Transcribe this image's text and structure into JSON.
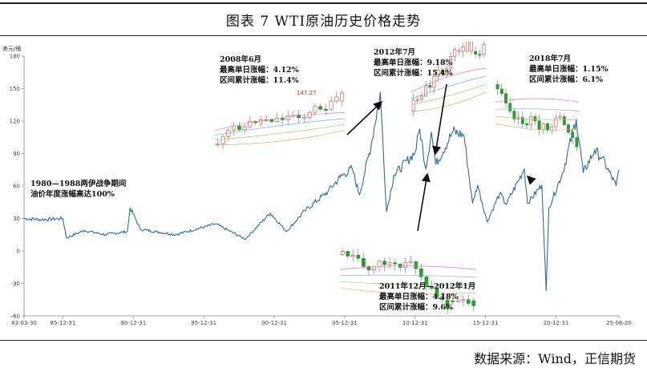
{
  "title": "图表 7 WTI原油历史价格走势",
  "source": "数据来源：Wind，正信期货",
  "chart_data": {
    "type": "line",
    "ylabel": "美元/桶",
    "ylim": [
      -60,
      180
    ],
    "yticks": [
      -60,
      -30,
      0,
      30,
      60,
      90,
      120,
      150,
      180
    ],
    "xticks": [
      "83-03-30",
      "85-12-31",
      "90-12-31",
      "95-12-31",
      "00-12-31",
      "05-12-31",
      "10-12-31",
      "15-12-31",
      "20-12-31",
      "25-06-20"
    ],
    "xrange": [
      "1983-03-30",
      "2025-06-20"
    ],
    "series": [
      {
        "color": "#2e6e96",
        "x": [
          "1983-03-30",
          "1984-06-30",
          "1985-12-31",
          "1986-04-01",
          "1987-06-30",
          "1988-12-31",
          "1990-07-31",
          "1990-10-10",
          "1991-06-30",
          "1993-12-31",
          "1996-10-31",
          "1998-12-10",
          "2000-09-20",
          "2001-11-15",
          "2003-03-01",
          "2004-10-25",
          "2005-08-30",
          "2006-07-14",
          "2007-01-18",
          "2007-11-20",
          "2008-07-11",
          "2008-12-21",
          "2009-06-30",
          "2010-12-31",
          "2011-04-29",
          "2011-10-04",
          "2012-02-24",
          "2012-06-21",
          "2013-09-06",
          "2014-06-20",
          "2015-01-28",
          "2015-06-10",
          "2016-02-11",
          "2016-12-31",
          "2017-06-21",
          "2018-10-03",
          "2018-12-24",
          "2019-12-31",
          "2020-04-20",
          "2020-06-30",
          "2021-06-30",
          "2022-06-08",
          "2022-12-09",
          "2023-09-27",
          "2024-04-05",
          "2025-04-09",
          "2025-06-20"
        ],
        "values": [
          30,
          29,
          30,
          12,
          19,
          15,
          18,
          40,
          20,
          15,
          25,
          11,
          35,
          18,
          37,
          55,
          68,
          76,
          52,
          98,
          147,
          36,
          70,
          91,
          113,
          76,
          110,
          80,
          110,
          107,
          44,
          61,
          27,
          53,
          43,
          76,
          44,
          61,
          -37,
          40,
          73,
          122,
          72,
          93,
          86,
          60,
          75
        ]
      }
    ]
  },
  "annotations": [
    {
      "name": "annotation-1980-1988",
      "lines": [
        "1980—1988两伊战争期间",
        "油价年度涨幅高达100%"
      ]
    },
    {
      "name": "annotation-2008",
      "lines": [
        "2008年6月",
        "最高单日涨幅：4.12%",
        "区间累计涨幅：11.4%"
      ],
      "peak_label": "147.27"
    },
    {
      "name": "annotation-2012-07",
      "lines": [
        "2012年7月",
        "最高单日涨幅：9.18%",
        "区间累计涨幅：15.4%"
      ]
    },
    {
      "name": "annotation-2018",
      "lines": [
        "2018年7月",
        "最高单日涨幅：1.15%",
        "区间累计涨幅：6.1%"
      ]
    },
    {
      "name": "annotation-2011-2012",
      "lines": [
        "2011年12月—2012年1月",
        "最高单日涨幅：4.18%",
        "区间累计涨幅：9.6%"
      ]
    }
  ],
  "colors": {
    "line": "#2e6e96",
    "up": "#d0403a",
    "down": "#2e9a35",
    "arrow": "#111111"
  }
}
